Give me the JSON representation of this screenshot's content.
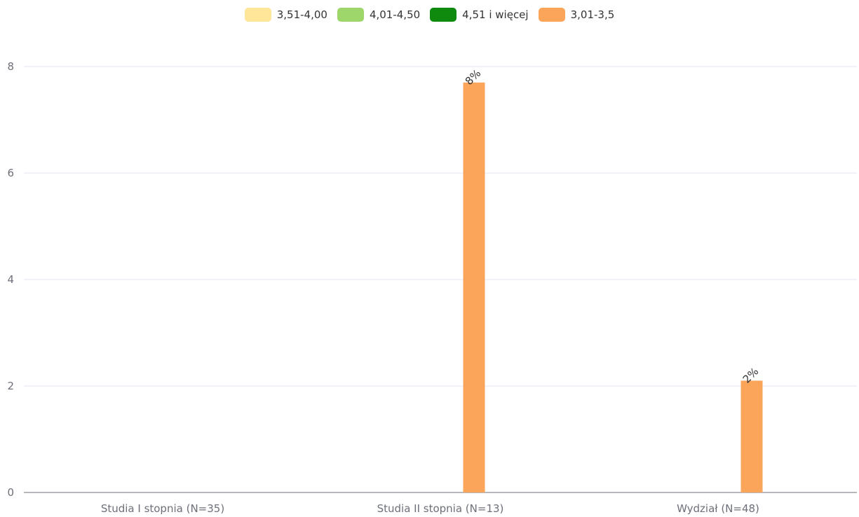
{
  "chart_data": {
    "type": "bar",
    "categories": [
      "Studia I stopnia (N=35)",
      "Studia II stopnia (N=13)",
      "Wydział (N=48)"
    ],
    "series": [
      {
        "name": "3,51-4,00",
        "color": "#ffe699",
        "values": [
          0,
          0,
          0
        ],
        "labels": [
          "",
          "",
          ""
        ]
      },
      {
        "name": "4,01-4,50",
        "color": "#9fd66c",
        "values": [
          0,
          0,
          0
        ],
        "labels": [
          "",
          "",
          ""
        ]
      },
      {
        "name": "4,51 i więcej",
        "color": "#0f8a0f",
        "values": [
          0,
          0,
          0
        ],
        "labels": [
          "",
          "",
          ""
        ]
      },
      {
        "name": "3,01-3,5",
        "color": "#fba55a",
        "values": [
          0,
          7.7,
          2.1
        ],
        "labels": [
          "",
          "8%",
          "2%"
        ]
      }
    ],
    "yticks": [
      "0",
      "2",
      "4",
      "6",
      "8"
    ],
    "ylim": [
      0,
      8
    ],
    "grid": true,
    "legend_position": "top-center",
    "title": "",
    "xlabel": "",
    "ylabel": ""
  }
}
